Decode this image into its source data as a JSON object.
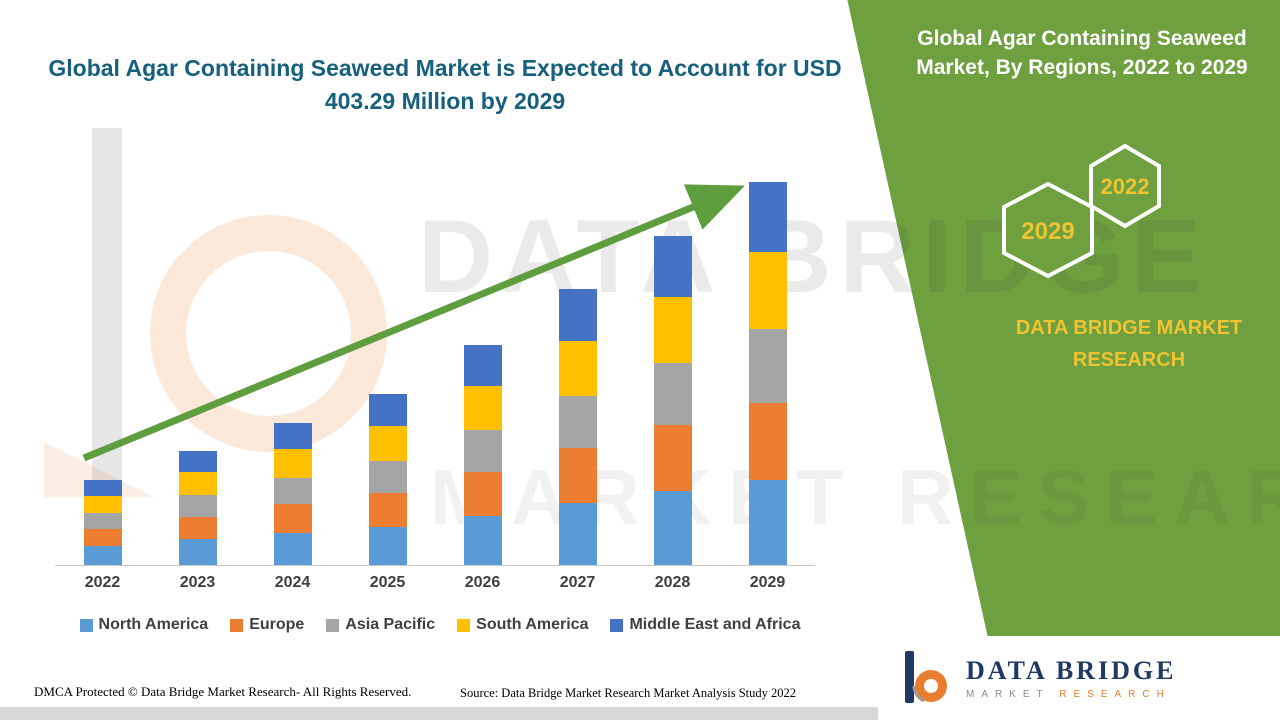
{
  "theme": {
    "green": "#6FA03F",
    "gold": "#F0C330",
    "title_color": "#17607D",
    "navy": "#1F3864",
    "orange": "#E87D2F",
    "arrow_green": "#5E9E3E"
  },
  "header": {
    "main_title": "Global Agar Containing Seaweed Market is Expected to Account for USD 403.29 Million by 2029"
  },
  "panel": {
    "title": "Global Agar Containing Seaweed Market, By Regions, 2022 to 2029",
    "hexagons": [
      {
        "year": "2029"
      },
      {
        "year": "2022"
      }
    ],
    "brand_text": "DATA BRIDGE MARKET RESEARCH"
  },
  "logo": {
    "name": "DATA BRIDGE",
    "subtitle_market": "MARKET",
    "subtitle_research": "RESEARCH"
  },
  "watermark": {
    "line1": "DATA BRIDGE",
    "line2": "MARKET RESEARCH"
  },
  "footer": {
    "dmca": "DMCA Protected © Data Bridge Market Research- All Rights Reserved.",
    "source": "Source: Data Bridge Market Research Market Analysis Study 2022"
  },
  "chart_data": {
    "type": "bar",
    "stacked": true,
    "title": "Global Agar Containing Seaweed Market, By Regions, 2022 to 2029",
    "xlabel": "",
    "ylabel": "",
    "ylim": [
      0,
      420
    ],
    "unit": "USD Million",
    "grid": false,
    "legend_position": "bottom",
    "categories": [
      "2022",
      "2023",
      "2024",
      "2025",
      "2026",
      "2027",
      "2028",
      "2029"
    ],
    "totals": [
      90,
      120,
      150,
      180,
      232,
      290,
      346,
      403.29
    ],
    "series": [
      {
        "name": "North America",
        "color": "#5B9BD5",
        "values": [
          20,
          27,
          34,
          40,
          52,
          65,
          78,
          90
        ]
      },
      {
        "name": "Europe",
        "color": "#ED7D31",
        "values": [
          18,
          24,
          30,
          36,
          46,
          58,
          69,
          81
        ]
      },
      {
        "name": "Asia Pacific",
        "color": "#A5A5A5",
        "values": [
          17,
          23,
          28,
          34,
          44,
          55,
          66,
          77
        ]
      },
      {
        "name": "South America",
        "color": "#FFC000",
        "values": [
          18,
          24,
          30,
          36,
          47,
          58,
          69,
          81
        ]
      },
      {
        "name": "Middle East and Africa",
        "color": "#4472C4",
        "values": [
          17,
          22,
          28,
          34,
          43,
          54,
          64,
          74.29
        ]
      }
    ],
    "annotations": [
      "Upward growth trend arrow from 2022 to 2029"
    ]
  }
}
